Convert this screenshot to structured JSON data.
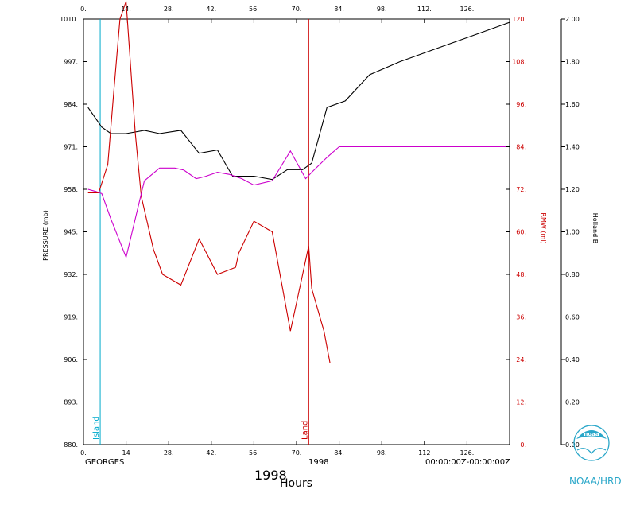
{
  "colors": {
    "frame": "#000000",
    "pressure": "#000000",
    "rmw": "#cc0000",
    "holland_b": "#cc00cc",
    "island_marker": "#00aacc",
    "land_marker": "#cc0000",
    "noaa": "#2aa7c9"
  },
  "footer": {
    "storm_name": "GEORGES",
    "year_small": "1998",
    "year_large": "1998",
    "time_range": "00:00:00Z-00:00:00Z",
    "xlabel": "Hours",
    "noaa_label": "NOAA/HRD",
    "logo_text": "noaa",
    "logo_icon": "noaa-logo-icon"
  },
  "chart_data": {
    "type": "line",
    "xlim": [
      0,
      140
    ],
    "x_ticks_top": [
      "0.",
      "14.",
      "28.",
      "42.",
      "56.",
      "70.",
      "84.",
      "98.",
      "112.",
      "126."
    ],
    "x_ticks_bottom": [
      "0.",
      "14",
      "28.",
      "42.",
      "56.",
      "70.",
      "84.",
      "98.",
      "112",
      "126."
    ],
    "x_tick_values": [
      0,
      14,
      28,
      42,
      56,
      70,
      84,
      98,
      112,
      126
    ],
    "y_left": {
      "label": "PRESSURE (mb)",
      "ylim": [
        880,
        1010
      ],
      "tick_values": [
        880,
        893,
        906,
        919,
        932,
        945,
        958,
        971,
        984,
        997,
        1010
      ],
      "tick_labels": [
        "880.",
        "893.",
        "906.",
        "919.",
        "932.",
        "945.",
        "958.",
        "971.",
        "984.",
        "997.",
        "1010."
      ]
    },
    "y_mid": {
      "label": "RMW (mi)",
      "ylim": [
        0,
        120
      ],
      "tick_values": [
        0,
        12,
        24,
        36,
        48,
        60,
        72,
        84,
        96,
        108,
        120
      ],
      "tick_labels": [
        "0.",
        "12.",
        "24.",
        "36.",
        "48.",
        "60.",
        "72.",
        "84.",
        "96.",
        "108.",
        "120."
      ]
    },
    "y_right": {
      "label": "Holland B",
      "ylim": [
        0,
        2
      ],
      "tick_values": [
        0,
        0.2,
        0.4,
        0.6,
        0.8,
        1.0,
        1.2,
        1.4,
        1.6,
        1.8,
        2.0
      ],
      "tick_labels": [
        "0.00",
        "0.20",
        "0.40",
        "0.60",
        "0.80",
        "1.00",
        "1.20",
        "1.40",
        "1.60",
        "1.80",
        "2.00"
      ]
    },
    "markers": [
      {
        "name": "Island",
        "x": 5.5
      },
      {
        "name": "Land",
        "x": 74
      }
    ],
    "series": [
      {
        "key": "pressure",
        "axis": "left",
        "x": [
          1.5,
          6,
          9,
          14,
          20,
          25,
          32,
          38,
          44,
          49,
          56,
          62,
          67,
          72,
          75,
          80,
          86,
          94,
          104,
          116,
          128,
          140
        ],
        "y": [
          983,
          977,
          975,
          975,
          976,
          975,
          976,
          969,
          970,
          962,
          962,
          961,
          964,
          964,
          966,
          983,
          985,
          993,
          997,
          1001,
          1005,
          1009
        ]
      },
      {
        "key": "rmw",
        "axis": "mid",
        "x": [
          1.5,
          5,
          8,
          10,
          12,
          14,
          17,
          19,
          23,
          26,
          32,
          38,
          44,
          50,
          51,
          56,
          62,
          68,
          70,
          74,
          75,
          79,
          81,
          140
        ],
        "y": [
          71,
          71,
          79,
          100,
          120,
          125,
          88,
          70,
          55,
          48,
          45,
          58,
          48,
          50,
          54,
          63,
          60,
          32,
          40,
          56,
          44,
          32,
          23,
          23
        ]
      },
      {
        "key": "holland_b",
        "axis": "right",
        "x": [
          1.5,
          4,
          6,
          9,
          14,
          17,
          20,
          25,
          30,
          33,
          37,
          40,
          44,
          48,
          52,
          56,
          62,
          68,
          73,
          75,
          80,
          84,
          140
        ],
        "y": [
          1.2,
          1.19,
          1.18,
          1.06,
          0.88,
          1.06,
          1.24,
          1.3,
          1.3,
          1.29,
          1.25,
          1.26,
          1.28,
          1.27,
          1.25,
          1.22,
          1.24,
          1.38,
          1.25,
          1.28,
          1.35,
          1.4,
          1.4
        ]
      }
    ]
  }
}
